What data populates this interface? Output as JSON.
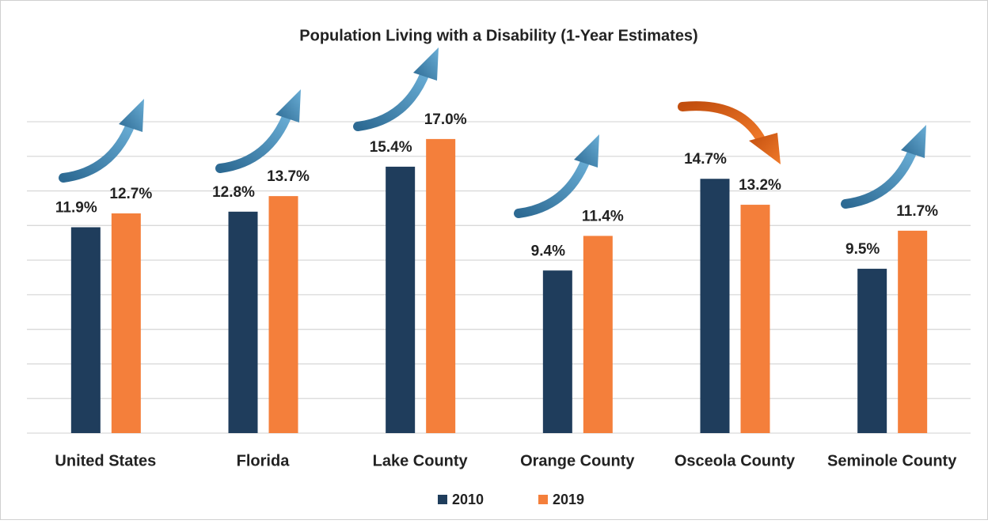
{
  "chart_data": {
    "type": "bar",
    "title": "Population Living with a Disability (1-Year Estimates)",
    "categories": [
      "United States",
      "Florida",
      "Lake County",
      "Orange County",
      "Osceola County",
      "Seminole County"
    ],
    "series": [
      {
        "name": "2010",
        "color": "#1f3d5c",
        "values": [
          11.9,
          12.8,
          15.4,
          9.4,
          14.7,
          9.5
        ],
        "value_labels": [
          "11.9%",
          "12.8%",
          "15.4%",
          "9.4%",
          "14.7%",
          "9.5%"
        ]
      },
      {
        "name": "2019",
        "color": "#f47f3b",
        "values": [
          12.7,
          13.7,
          17.0,
          11.4,
          13.2,
          11.7
        ],
        "value_labels": [
          "12.7%",
          "13.7%",
          "17.0%",
          "11.4%",
          "13.2%",
          "11.7%"
        ]
      }
    ],
    "ylim": [
      0,
      18
    ],
    "yticks": [
      0,
      2,
      4,
      6,
      8,
      10,
      12,
      14,
      16,
      18
    ],
    "grid": true,
    "legend": "bottom"
  }
}
